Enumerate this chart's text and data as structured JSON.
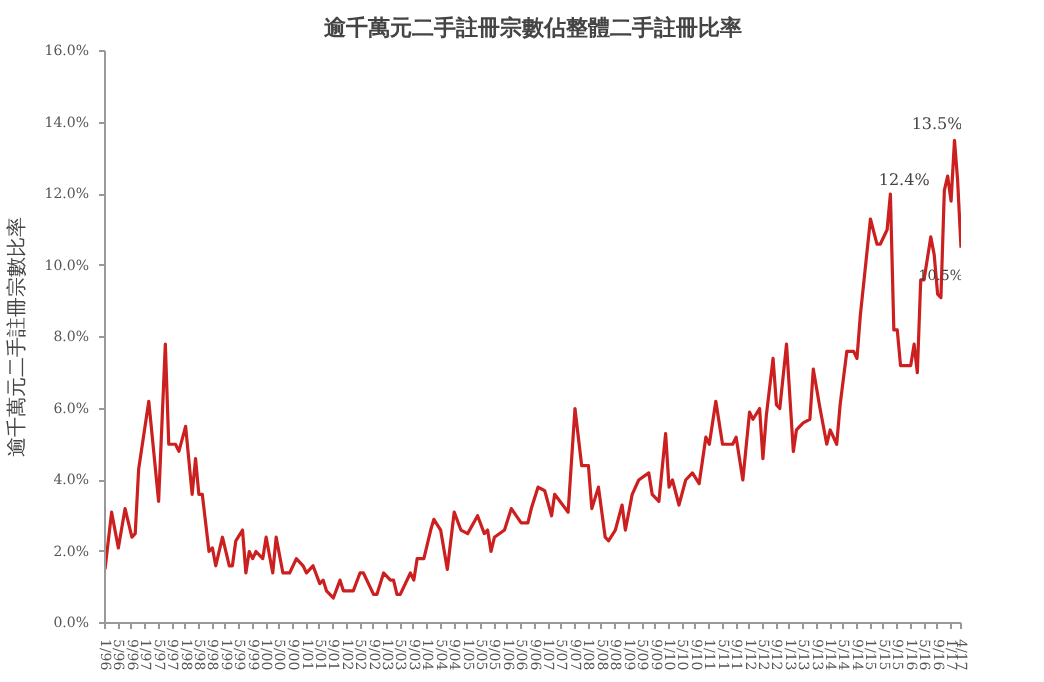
{
  "chart_data": {
    "type": "line",
    "title": "逾千萬元二手註冊宗數佔整體二手註冊比率",
    "ylabel": "逾千萬元二手註冊宗數比率",
    "x": [
      "1996-01",
      "1996-03",
      "1996-05",
      "1996-07",
      "1996-09",
      "1996-10",
      "1996-11",
      "1997-02",
      "1997-05",
      "1997-07",
      "1997-08",
      "1997-10",
      "1997-11",
      "1998-01",
      "1998-03",
      "1998-04",
      "1998-05",
      "1998-06",
      "1998-08",
      "1998-09",
      "1998-10",
      "1998-12",
      "1999-02",
      "1999-03",
      "1999-04",
      "1999-06",
      "1999-07",
      "1999-08",
      "1999-09",
      "1999-10",
      "1999-12",
      "2000-01",
      "2000-03",
      "2000-04",
      "2000-06",
      "2000-08",
      "2000-10",
      "2000-12",
      "2001-01",
      "2001-03",
      "2001-05",
      "2001-06",
      "2001-07",
      "2001-09",
      "2001-11",
      "2001-12",
      "2002-03",
      "2002-05",
      "2002-06",
      "2002-09",
      "2002-10",
      "2002-12",
      "2003-02",
      "2003-03",
      "2003-04",
      "2003-05",
      "2003-08",
      "2003-09",
      "2003-10",
      "2003-12",
      "2004-02",
      "2004-03",
      "2004-05",
      "2004-07",
      "2004-09",
      "2004-11",
      "2005-01",
      "2005-04",
      "2005-06",
      "2005-07",
      "2005-08",
      "2005-09",
      "2005-12",
      "2006-02",
      "2006-05",
      "2006-07",
      "2006-08",
      "2006-10",
      "2006-12",
      "2007-02",
      "2007-03",
      "2007-07",
      "2007-09",
      "2007-11",
      "2008-01",
      "2008-02",
      "2008-04",
      "2008-06",
      "2008-07",
      "2008-09",
      "2008-11",
      "2008-12",
      "2009-02",
      "2009-04",
      "2009-07",
      "2009-08",
      "2009-10",
      "2009-12",
      "2010-01",
      "2010-02",
      "2010-04",
      "2010-06",
      "2010-08",
      "2010-10",
      "2010-12",
      "2011-01",
      "2011-03",
      "2011-05",
      "2011-08",
      "2011-09",
      "2011-11",
      "2012-01",
      "2012-02",
      "2012-04",
      "2012-05",
      "2012-06",
      "2012-08",
      "2012-09",
      "2012-10",
      "2012-12",
      "2013-02",
      "2013-03",
      "2013-05",
      "2013-07",
      "2013-08",
      "2013-10",
      "2013-12",
      "2014-01",
      "2014-03",
      "2014-04",
      "2014-06",
      "2014-08",
      "2014-09",
      "2014-10",
      "2015-01",
      "2015-03",
      "2015-04",
      "2015-06",
      "2015-07",
      "2015-08",
      "2015-09",
      "2015-10",
      "2016-01",
      "2016-02",
      "2016-03",
      "2016-04",
      "2016-05",
      "2016-07",
      "2016-08",
      "2016-09",
      "2016-10",
      "2016-11",
      "2016-12",
      "2017-01",
      "2017-02",
      "2017-03",
      "2017-04"
    ],
    "series": [
      {
        "color": "#cc1f1f",
        "values": [
          1.5,
          3.1,
          2.1,
          3.2,
          2.4,
          2.5,
          4.3,
          6.2,
          3.4,
          7.8,
          5.0,
          5.0,
          4.8,
          5.5,
          3.6,
          4.6,
          3.6,
          3.6,
          2.0,
          2.1,
          1.6,
          2.4,
          1.6,
          1.6,
          2.3,
          2.6,
          1.4,
          2.0,
          1.8,
          2.0,
          1.8,
          2.4,
          1.4,
          2.4,
          1.4,
          1.4,
          1.8,
          1.6,
          1.4,
          1.6,
          1.1,
          1.2,
          0.9,
          0.7,
          1.2,
          0.9,
          0.9,
          1.4,
          1.4,
          0.8,
          0.8,
          1.4,
          1.2,
          1.2,
          0.8,
          0.8,
          1.4,
          1.2,
          1.8,
          1.8,
          2.6,
          2.9,
          2.6,
          1.5,
          3.1,
          2.6,
          2.5,
          3.0,
          2.5,
          2.6,
          2.0,
          2.4,
          2.6,
          3.2,
          2.8,
          2.8,
          3.2,
          3.8,
          3.7,
          3.0,
          3.6,
          3.1,
          6.0,
          4.4,
          4.4,
          3.2,
          3.8,
          2.4,
          2.3,
          2.6,
          3.3,
          2.6,
          3.6,
          4.0,
          4.2,
          3.6,
          3.4,
          5.3,
          3.8,
          4.0,
          3.3,
          4.0,
          4.2,
          3.9,
          5.2,
          5.0,
          6.2,
          5.0,
          5.0,
          5.2,
          4.0,
          5.9,
          5.7,
          6.0,
          4.6,
          5.8,
          7.4,
          6.1,
          6.0,
          7.8,
          4.8,
          5.4,
          5.6,
          5.7,
          7.1,
          6.0,
          5.0,
          5.4,
          5.0,
          6.1,
          7.6,
          7.6,
          7.4,
          8.6,
          11.3,
          10.6,
          10.6,
          11.0,
          12.0,
          8.2,
          8.2,
          7.2,
          7.2,
          7.8,
          7.0,
          9.6,
          9.6,
          10.8,
          10.3,
          9.2,
          9.1,
          12.1,
          12.5,
          11.8,
          13.5,
          12.4,
          10.5
        ]
      }
    ],
    "annotations": [
      {
        "text": "13.5%",
        "x": "2017-02",
        "y": 13.5
      },
      {
        "text": "12.4%",
        "x": "2017-03",
        "y": 12.4
      },
      {
        "text": "10.5%",
        "x": "2017-04",
        "y": 10.5
      }
    ],
    "xlim": [
      "1996-01",
      "2017-04"
    ],
    "xticks": [
      {
        "value": "1996-01",
        "label": "1/96"
      },
      {
        "value": "1996-05",
        "label": "5/96"
      },
      {
        "value": "1996-09",
        "label": "9/96"
      },
      {
        "value": "1997-01",
        "label": "1/97"
      },
      {
        "value": "1997-05",
        "label": "5/97"
      },
      {
        "value": "1997-09",
        "label": "9/97"
      },
      {
        "value": "1998-01",
        "label": "1/98"
      },
      {
        "value": "1998-05",
        "label": "5/98"
      },
      {
        "value": "1998-09",
        "label": "9/98"
      },
      {
        "value": "1999-01",
        "label": "1/99"
      },
      {
        "value": "1999-05",
        "label": "5/99"
      },
      {
        "value": "1999-09",
        "label": "9/99"
      },
      {
        "value": "2000-01",
        "label": "1/00"
      },
      {
        "value": "2000-05",
        "label": "5/00"
      },
      {
        "value": "2000-09",
        "label": "9/00"
      },
      {
        "value": "2001-01",
        "label": "1/01"
      },
      {
        "value": "2001-05",
        "label": "5/01"
      },
      {
        "value": "2001-09",
        "label": "9/01"
      },
      {
        "value": "2002-01",
        "label": "1/02"
      },
      {
        "value": "2002-05",
        "label": "5/02"
      },
      {
        "value": "2002-09",
        "label": "9/02"
      },
      {
        "value": "2003-01",
        "label": "1/03"
      },
      {
        "value": "2003-05",
        "label": "5/03"
      },
      {
        "value": "2003-09",
        "label": "9/03"
      },
      {
        "value": "2004-01",
        "label": "1/04"
      },
      {
        "value": "2004-05",
        "label": "5/04"
      },
      {
        "value": "2004-09",
        "label": "9/04"
      },
      {
        "value": "2005-01",
        "label": "1/05"
      },
      {
        "value": "2005-05",
        "label": "5/05"
      },
      {
        "value": "2005-09",
        "label": "9/05"
      },
      {
        "value": "2006-01",
        "label": "1/06"
      },
      {
        "value": "2006-05",
        "label": "5/06"
      },
      {
        "value": "2006-09",
        "label": "9/06"
      },
      {
        "value": "2007-01",
        "label": "1/07"
      },
      {
        "value": "2007-05",
        "label": "5/07"
      },
      {
        "value": "2007-09",
        "label": "9/07"
      },
      {
        "value": "2008-01",
        "label": "1/08"
      },
      {
        "value": "2008-05",
        "label": "5/08"
      },
      {
        "value": "2008-09",
        "label": "9/08"
      },
      {
        "value": "2009-01",
        "label": "1/09"
      },
      {
        "value": "2009-05",
        "label": "5/09"
      },
      {
        "value": "2009-09",
        "label": "9/09"
      },
      {
        "value": "2010-01",
        "label": "1/10"
      },
      {
        "value": "2010-05",
        "label": "5/10"
      },
      {
        "value": "2010-09",
        "label": "9/10"
      },
      {
        "value": "2011-01",
        "label": "1/11"
      },
      {
        "value": "2011-05",
        "label": "5/11"
      },
      {
        "value": "2011-09",
        "label": "9/11"
      },
      {
        "value": "2012-01",
        "label": "1/12"
      },
      {
        "value": "2012-05",
        "label": "5/12"
      },
      {
        "value": "2012-09",
        "label": "9/12"
      },
      {
        "value": "2013-01",
        "label": "1/13"
      },
      {
        "value": "2013-05",
        "label": "5/13"
      },
      {
        "value": "2013-09",
        "label": "9/13"
      },
      {
        "value": "2014-01",
        "label": "1/14"
      },
      {
        "value": "2014-05",
        "label": "5/14"
      },
      {
        "value": "2014-09",
        "label": "9/14"
      },
      {
        "value": "2015-01",
        "label": "1/15"
      },
      {
        "value": "2015-05",
        "label": "5/15"
      },
      {
        "value": "2015-09",
        "label": "9/15"
      },
      {
        "value": "2016-01",
        "label": "1/16"
      },
      {
        "value": "2016-05",
        "label": "5/16"
      },
      {
        "value": "2016-09",
        "label": "9/16"
      },
      {
        "value": "2017-01",
        "label": "1/17"
      },
      {
        "value": "2017-04",
        "label": "4/17"
      }
    ],
    "ylim": [
      0,
      16
    ],
    "yticks": [
      {
        "value": 0,
        "label": "0.0%"
      },
      {
        "value": 2,
        "label": "2.0%"
      },
      {
        "value": 4,
        "label": "4.0%"
      },
      {
        "value": 6,
        "label": "6.0%"
      },
      {
        "value": 8,
        "label": "8.0%"
      },
      {
        "value": 10,
        "label": "10.0%"
      },
      {
        "value": 12,
        "label": "12.0%"
      },
      {
        "value": 14,
        "label": "14.0%"
      },
      {
        "value": 16,
        "label": "16.0%"
      }
    ],
    "grid": false,
    "marker": "none",
    "line_style": "solid"
  }
}
